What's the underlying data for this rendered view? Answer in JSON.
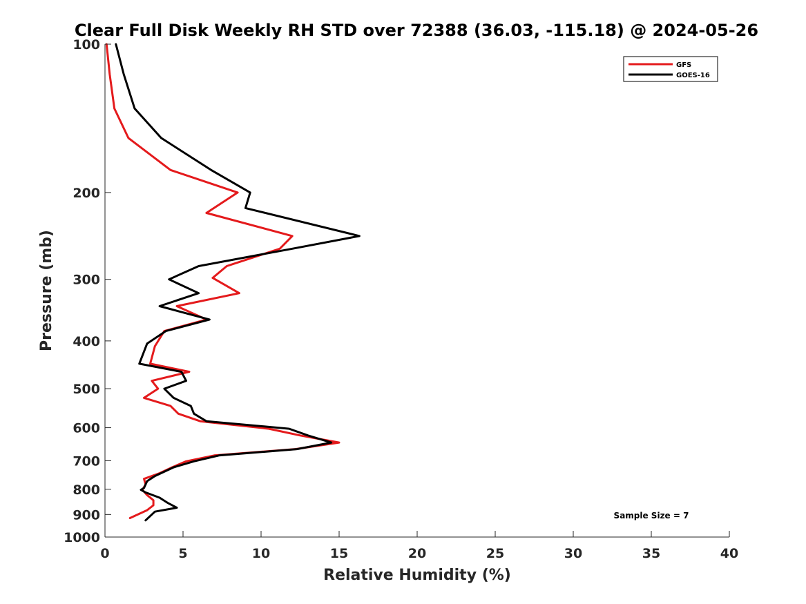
{
  "chart_data": {
    "type": "line",
    "title": "Clear Full Disk Weekly RH STD over 72388 (36.03, -115.18) @ 2024-05-26",
    "xlabel": "Relative Humidity (%)",
    "ylabel": "Pressure (mb)",
    "xlim": [
      0,
      40
    ],
    "ylim": [
      100,
      1000
    ],
    "y_scale": "log",
    "y_direction": "reversed",
    "x_ticks": [
      0,
      5,
      10,
      15,
      20,
      25,
      30,
      35,
      40
    ],
    "x_tick_labels": [
      "0",
      "5",
      "10",
      "15",
      "20",
      "25",
      "30",
      "35",
      "40"
    ],
    "y_ticks": [
      100,
      200,
      300,
      400,
      500,
      600,
      700,
      800,
      900,
      1000
    ],
    "y_tick_labels": [
      "100",
      "200",
      "300",
      "400",
      "500",
      "600",
      "700",
      "800",
      "900",
      "1000"
    ],
    "grid": false,
    "legend_position": "top-right",
    "annotation": "Sample Size = 7",
    "series": [
      {
        "name": "GFS",
        "color": "#e41a1c",
        "points": [
          [
            0.1,
            100
          ],
          [
            0.3,
            115
          ],
          [
            0.6,
            135
          ],
          [
            1.5,
            155
          ],
          [
            4.2,
            180
          ],
          [
            8.5,
            200
          ],
          [
            6.5,
            220
          ],
          [
            12.0,
            245
          ],
          [
            11.2,
            260
          ],
          [
            7.8,
            282
          ],
          [
            6.9,
            298
          ],
          [
            8.6,
            320
          ],
          [
            4.6,
            340
          ],
          [
            6.5,
            362
          ],
          [
            3.8,
            382
          ],
          [
            3.2,
            410
          ],
          [
            2.9,
            445
          ],
          [
            5.4,
            462
          ],
          [
            3.0,
            482
          ],
          [
            3.4,
            500
          ],
          [
            2.5,
            522
          ],
          [
            4.2,
            542
          ],
          [
            4.7,
            562
          ],
          [
            6.1,
            582
          ],
          [
            10.5,
            603
          ],
          [
            12.5,
            622
          ],
          [
            15.0,
            643
          ],
          [
            12.2,
            663
          ],
          [
            7.0,
            683
          ],
          [
            5.2,
            702
          ],
          [
            4.3,
            722
          ],
          [
            3.5,
            742
          ],
          [
            2.5,
            762
          ],
          [
            2.6,
            782
          ],
          [
            2.4,
            802
          ],
          [
            2.7,
            822
          ],
          [
            3.1,
            842
          ],
          [
            3.1,
            862
          ],
          [
            2.7,
            882
          ],
          [
            1.6,
            915
          ]
        ]
      },
      {
        "name": "GOES-16",
        "color": "#000000",
        "points": [
          [
            0.7,
            100
          ],
          [
            1.2,
            115
          ],
          [
            1.9,
            135
          ],
          [
            3.6,
            155
          ],
          [
            6.8,
            180
          ],
          [
            9.3,
            200
          ],
          [
            9.0,
            215
          ],
          [
            16.3,
            245
          ],
          [
            12.0,
            260
          ],
          [
            6.0,
            282
          ],
          [
            4.1,
            300
          ],
          [
            6.0,
            320
          ],
          [
            3.5,
            340
          ],
          [
            6.7,
            362
          ],
          [
            3.9,
            382
          ],
          [
            2.7,
            405
          ],
          [
            2.2,
            445
          ],
          [
            4.9,
            462
          ],
          [
            5.2,
            482
          ],
          [
            3.8,
            500
          ],
          [
            4.4,
            522
          ],
          [
            5.5,
            542
          ],
          [
            5.7,
            562
          ],
          [
            6.5,
            582
          ],
          [
            11.8,
            603
          ],
          [
            13.0,
            622
          ],
          [
            14.5,
            643
          ],
          [
            12.3,
            663
          ],
          [
            7.3,
            683
          ],
          [
            5.7,
            702
          ],
          [
            4.4,
            722
          ],
          [
            3.2,
            752
          ],
          [
            2.7,
            770
          ],
          [
            2.5,
            795
          ],
          [
            2.3,
            802
          ],
          [
            2.6,
            812
          ],
          [
            3.5,
            832
          ],
          [
            4.0,
            852
          ],
          [
            4.6,
            872
          ],
          [
            3.2,
            888
          ],
          [
            2.6,
            925
          ]
        ]
      }
    ]
  }
}
